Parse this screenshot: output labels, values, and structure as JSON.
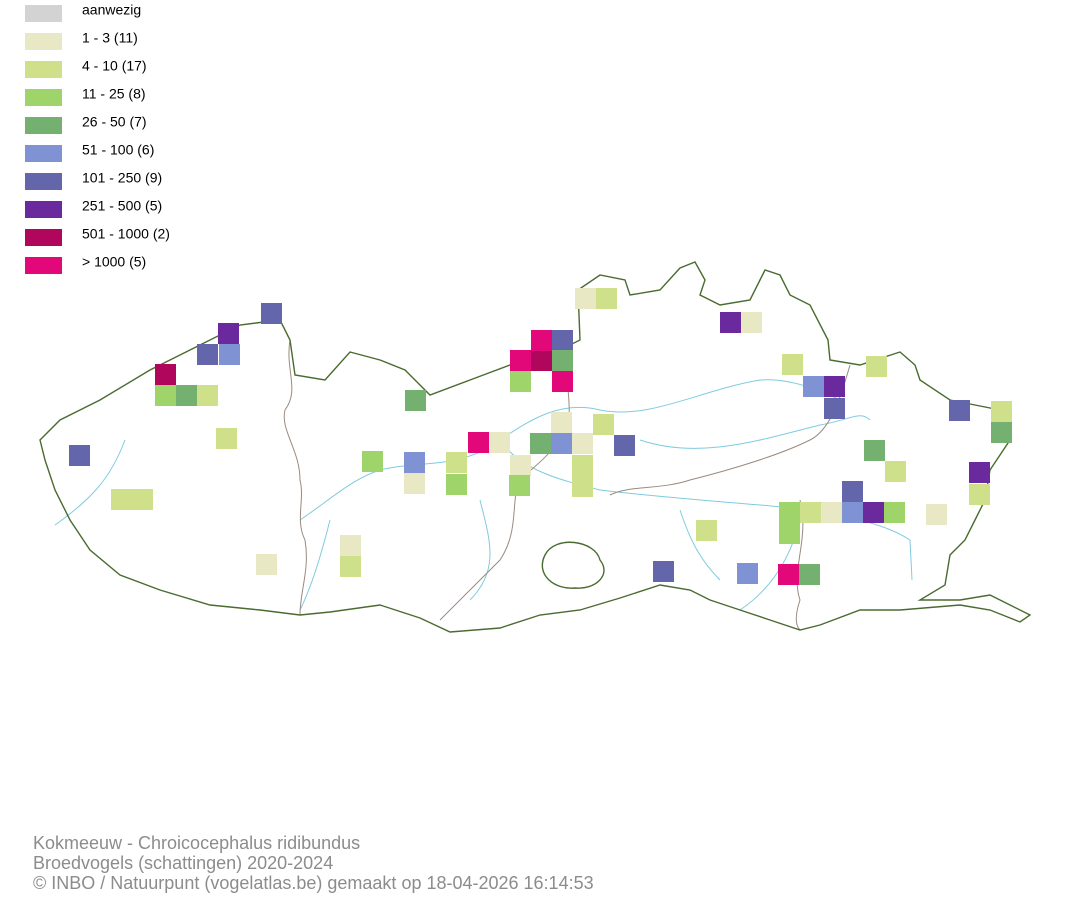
{
  "legend": {
    "items": [
      {
        "label": "aanwezig",
        "color": "#d3d3d3"
      },
      {
        "label": "1 - 3 (11)",
        "color": "#e8e9c4"
      },
      {
        "label": "4 - 10 (17)",
        "color": "#cfe08a"
      },
      {
        "label": "11 - 25 (8)",
        "color": "#9fd46a"
      },
      {
        "label": "26 - 50 (7)",
        "color": "#74b06f"
      },
      {
        "label": "51 - 100 (6)",
        "color": "#7f93d4"
      },
      {
        "label": "101 - 250 (9)",
        "color": "#6366ab"
      },
      {
        "label": "251 - 500 (5)",
        "color": "#6a2a9e"
      },
      {
        "label": "501 - 1000 (2)",
        "color": "#b0075c"
      },
      {
        "label": "> 1000 (5)",
        "color": "#e3087a"
      }
    ]
  },
  "footer": {
    "species": "Kokmeeuw - Chroicocephalus ridibundus",
    "dataset": "Broedvogels (schattingen) 2020-2024",
    "credit": "© INBO / Natuurpunt (vogelatlas.be) gemaakt op 18-04-2026 16:14:53"
  }
}
